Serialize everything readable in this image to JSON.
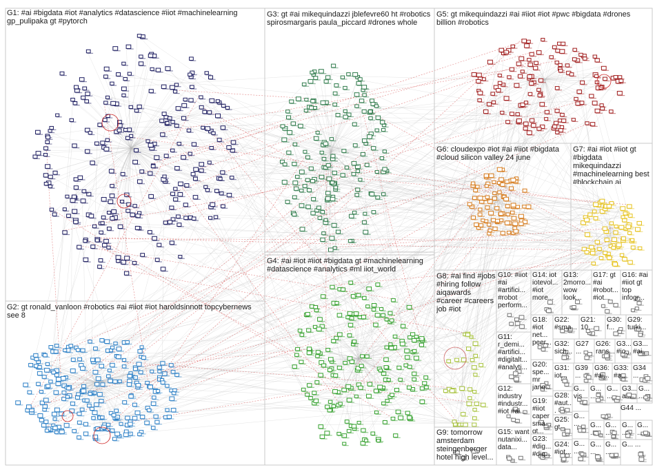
{
  "groups": [
    {
      "id": "G1",
      "label": "G1: #ai #bigdata #iot #analytics #datascience #iiot #machinelearning gp_pulipaka gt #pytorch"
    },
    {
      "id": "G2",
      "label": "G2: gt ronald_vanloon #robotics #ai #iiot #iot haroldsinnott topcybernews see 8"
    },
    {
      "id": "G3",
      "label": "G3: gt #ai mikequindazzi jblefevre60 ht #robotics spirosmargaris paula_piccard #drones whole"
    },
    {
      "id": "G4",
      "label": "G4: #ai #iot #iiot #bigdata gt #machinelearning #datascience #analytics #ml iiot_world"
    },
    {
      "id": "G5",
      "label": "G5: gt mikequindazzi #ai #iiot #iot #pwc #bigdata #drones billion #robotics"
    },
    {
      "id": "G6",
      "label": "G6: cloudexpo #iot #ai #iiot #bigdata #cloud silicon valley 24 june"
    },
    {
      "id": "G7",
      "label": "G7: #ai #iot #iiot gt #bigdata mikequindazzi #machinelearning best #blockchain ai"
    },
    {
      "id": "G8",
      "label": "G8: #ai find #jobs #hiring follow aiqawards #career #careers job #iot"
    },
    {
      "id": "G9",
      "label": "G9: tomorrow amsterdam steingenberger hotel high level..."
    },
    {
      "id": "G10",
      "label": "G10: #iiot #ai #artifici... #robot perform..."
    },
    {
      "id": "G11",
      "label": "G11: r_demi... #artifici... #digitalt... #analyti..."
    },
    {
      "id": "G12",
      "label": "G12: industry #industr... #iot #ai..."
    },
    {
      "id": "G13",
      "label": "G13: 2morro... wow look..."
    },
    {
      "id": "G14",
      "label": "G14: iot iotevol... #iot more..."
    },
    {
      "id": "G15",
      "label": "G15: want nutanixi... data..."
    },
    {
      "id": "G16",
      "label": "G16: #ai #iiot gt top infogr..."
    },
    {
      "id": "G17",
      "label": "G17: gt #ai #robot... #iot..."
    },
    {
      "id": "G18",
      "label": "G18: #iot net... peer..."
    },
    {
      "id": "G19",
      "label": "G19: #iiot caper sma... gt..."
    },
    {
      "id": "G20",
      "label": "G20: spe... mr jano..."
    },
    {
      "id": "G21",
      "label": "G21: 10..."
    },
    {
      "id": "G22",
      "label": "G22: #sma..."
    },
    {
      "id": "G23",
      "label": "G23: #dig... #dig..."
    },
    {
      "id": "G24",
      "label": "G24: #iot..."
    },
    {
      "id": "G25",
      "label": "G25: gt..."
    },
    {
      "id": "G26",
      "label": "G26: rans..."
    },
    {
      "id": "G27",
      "label": "G27 ..."
    },
    {
      "id": "G28",
      "label": "G28: #aut..."
    },
    {
      "id": "G29",
      "label": "G29: turki..."
    },
    {
      "id": "G30",
      "label": "G30: f..."
    },
    {
      "id": "G31",
      "label": "G31: iot..."
    },
    {
      "id": "G32",
      "label": "G32: sich..."
    },
    {
      "id": "G33",
      "label": "G33: #a..."
    },
    {
      "id": "G34",
      "label": "G34 ..."
    },
    {
      "id": "G35",
      "label": "G3... #io..."
    },
    {
      "id": "G36",
      "label": "G36: #ai..."
    },
    {
      "id": "G37",
      "label": "G3... #ai..."
    },
    {
      "id": "G38",
      "label": "G3... a..."
    },
    {
      "id": "G39",
      "label": "G39 ..."
    },
    {
      "id": "G40",
      "label": "G... vis..."
    },
    {
      "id": "G41",
      "label": "G... ..."
    },
    {
      "id": "G42",
      "label": "G... ..."
    },
    {
      "id": "G43",
      "label": "G... ..."
    },
    {
      "id": "G44",
      "label": "G44 ..."
    },
    {
      "id": "G45",
      "label": "G... ..."
    },
    {
      "id": "G46",
      "label": "G... ..."
    },
    {
      "id": "G47",
      "label": "G... ..."
    },
    {
      "id": "G48",
      "label": "G... ..."
    },
    {
      "id": "G49",
      "label": "G... ..."
    },
    {
      "id": "G50",
      "label": "G... ..."
    },
    {
      "id": "G51",
      "label": "G... ..."
    },
    {
      "id": "G52",
      "label": "G... ..."
    },
    {
      "id": "G53",
      "label": "G... ..."
    }
  ],
  "colors": {
    "G1": "#1a1a5e",
    "G2": "#2b7fc6",
    "G3": "#2e7a4a",
    "G4": "#33a02c",
    "G5": "#a01b1b",
    "G6": "#d67a1a",
    "G7": "#e6c21a",
    "G8": "#a6c23a",
    "edge": "#b5b5b5",
    "cross_edge": "#cc2222",
    "border": "#c8c8c8"
  }
}
